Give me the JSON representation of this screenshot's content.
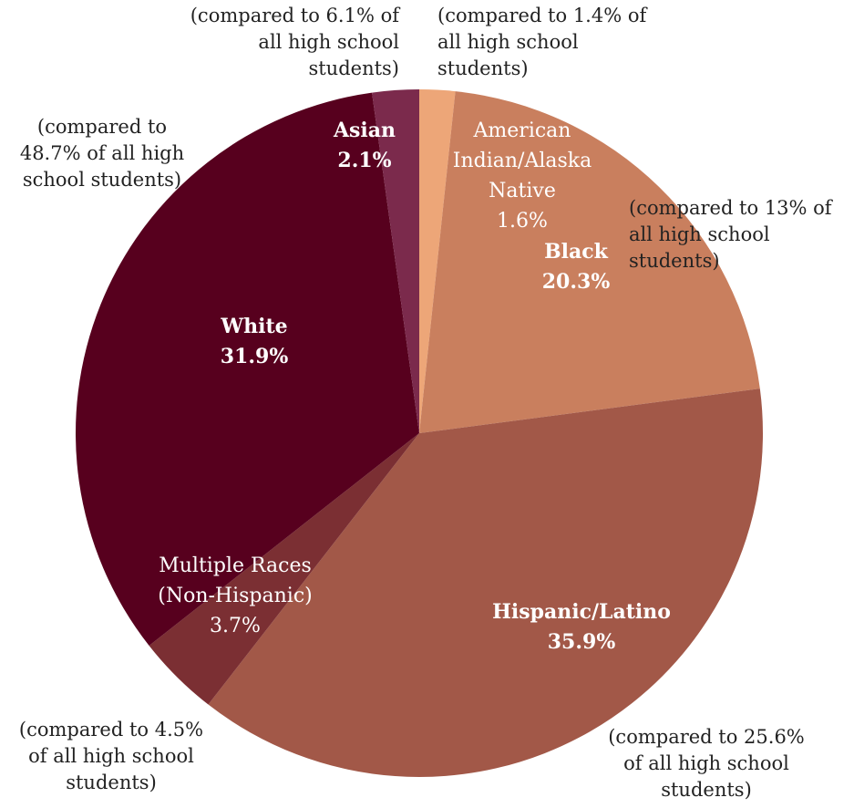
{
  "chart_data": {
    "type": "pie",
    "start_angle_deg": 0,
    "direction": "clockwise",
    "slices": [
      {
        "name": "American Indian/Alaska Native",
        "label_lines": [
          "American",
          "Indian/Alaska",
          "Native"
        ],
        "value": 1.6,
        "value_label": "1.6%",
        "color": "#eda678",
        "note_lines": [
          "(compared to 1.4% of",
          "all high school",
          "students)"
        ]
      },
      {
        "name": "Black",
        "label_lines": [
          "Black"
        ],
        "value": 20.3,
        "value_label": "20.3%",
        "color": "#c97f5e",
        "note_lines": [
          "(compared to 13% of",
          "all high school",
          "students)"
        ]
      },
      {
        "name": "Hispanic/Latino",
        "label_lines": [
          "Hispanic/Latino"
        ],
        "value": 35.9,
        "value_label": "35.9%",
        "color": "#a25848",
        "note_lines": [
          "(compared to 25.6%",
          "of all high school",
          "students)"
        ]
      },
      {
        "name": "Multiple Races (Non-Hispanic)",
        "label_lines": [
          "Multiple Races",
          "(Non-Hispanic)"
        ],
        "value": 3.7,
        "value_label": "3.7%",
        "color": "#7b2f33",
        "note_lines": [
          "(compared to 4.5%",
          "of all high school",
          "students)"
        ]
      },
      {
        "name": "White",
        "label_lines": [
          "White"
        ],
        "value": 31.9,
        "value_label": "31.9%",
        "color": "#57001e",
        "note_lines": [
          "(compared to",
          "48.7% of all high",
          "school students)"
        ]
      },
      {
        "name": "Asian",
        "label_lines": [
          "Asian"
        ],
        "value": 2.1,
        "value_label": "2.1%",
        "color": "#7b2a4c",
        "note_lines": [
          "(compared to 6.1% of",
          "all high school",
          "students)"
        ]
      }
    ]
  }
}
